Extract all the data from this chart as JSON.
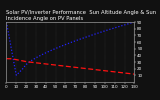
{
  "title": "Solar PV/Inverter Performance  Sun Altitude Angle & Sun Incidence Angle on PV Panels",
  "bg_color": "#111111",
  "plot_bg_color": "#111111",
  "grid_color": "#555555",
  "line1_color": "#2222ff",
  "line2_color": "#ff1111",
  "ylim": [
    0,
    90
  ],
  "ytick_values": [
    10,
    20,
    30,
    40,
    50,
    60,
    70,
    80,
    90
  ],
  "xlim_start": 0,
  "xlim_end": 130,
  "title_fontsize": 3.8,
  "tick_fontsize": 3.0,
  "linewidth": 0.9
}
